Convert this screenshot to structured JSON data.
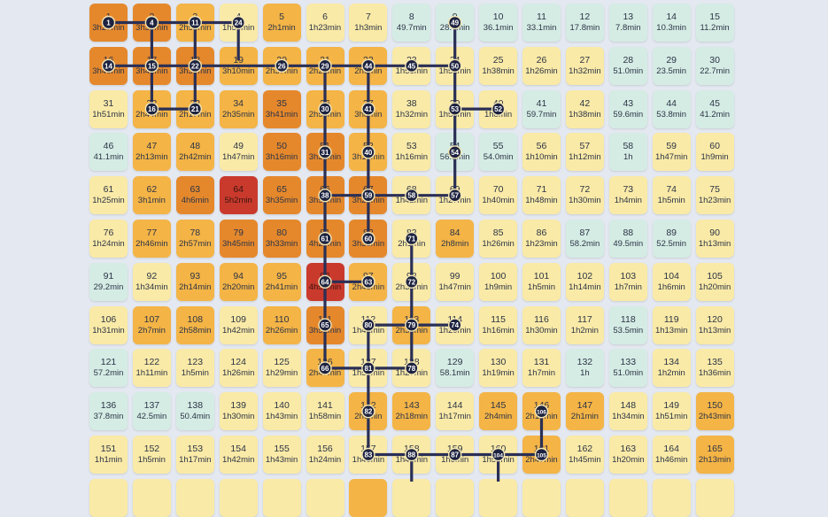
{
  "columns": 15,
  "colors": {
    "t0": "#d5ece4",
    "t1": "#faeaa7",
    "t2": "#f4b446",
    "t3": "#e5882c",
    "t4": "#c93a2d",
    "route": "#2a2f55",
    "marker": "#1d2340"
  },
  "cells": [
    {
      "n": "1",
      "v": "3h27min",
      "t": "t3"
    },
    {
      "n": "2",
      "v": "3h39min",
      "t": "t3"
    },
    {
      "n": "3",
      "v": "2h51min",
      "t": "t2"
    },
    {
      "n": "4",
      "v": "1h56min",
      "t": "t1"
    },
    {
      "n": "5",
      "v": "2h1min",
      "t": "t2"
    },
    {
      "n": "6",
      "v": "1h23min",
      "t": "t1"
    },
    {
      "n": "7",
      "v": "1h3min",
      "t": "t1"
    },
    {
      "n": "8",
      "v": "49.7min",
      "t": "t0"
    },
    {
      "n": "9",
      "v": "28.4min",
      "t": "t0"
    },
    {
      "n": "10",
      "v": "36.1min",
      "t": "t0"
    },
    {
      "n": "11",
      "v": "33.1min",
      "t": "t0"
    },
    {
      "n": "12",
      "v": "17.8min",
      "t": "t0"
    },
    {
      "n": "13",
      "v": "7.8min",
      "t": "t0"
    },
    {
      "n": "14",
      "v": "10.3min",
      "t": "t0"
    },
    {
      "n": "15",
      "v": "11.2min",
      "t": "t0"
    },
    {
      "n": "16",
      "v": "3h46min",
      "t": "t3"
    },
    {
      "n": "17",
      "v": "3h41min",
      "t": "t3"
    },
    {
      "n": "18",
      "v": "3h39min",
      "t": "t3"
    },
    {
      "n": "19",
      "v": "3h10min",
      "t": "t2"
    },
    {
      "n": "20",
      "v": "2h37min",
      "t": "t2"
    },
    {
      "n": "21",
      "v": "2h21min",
      "t": "t2"
    },
    {
      "n": "22",
      "v": "2h6min",
      "t": "t2"
    },
    {
      "n": "23",
      "v": "1h56min",
      "t": "t1"
    },
    {
      "n": "24",
      "v": "1h51min",
      "t": "t1"
    },
    {
      "n": "25",
      "v": "1h38min",
      "t": "t1"
    },
    {
      "n": "26",
      "v": "1h26min",
      "t": "t1"
    },
    {
      "n": "27",
      "v": "1h32min",
      "t": "t1"
    },
    {
      "n": "28",
      "v": "51.0min",
      "t": "t0"
    },
    {
      "n": "29",
      "v": "23.5min",
      "t": "t0"
    },
    {
      "n": "30",
      "v": "22.7min",
      "t": "t0"
    },
    {
      "n": "31",
      "v": "1h51min",
      "t": "t1"
    },
    {
      "n": "32",
      "v": "2h44min",
      "t": "t2"
    },
    {
      "n": "33",
      "v": "2h17min",
      "t": "t2"
    },
    {
      "n": "34",
      "v": "2h35min",
      "t": "t2"
    },
    {
      "n": "35",
      "v": "3h41min",
      "t": "t3"
    },
    {
      "n": "36",
      "v": "2h58min",
      "t": "t2"
    },
    {
      "n": "37",
      "v": "3h8min",
      "t": "t2"
    },
    {
      "n": "38",
      "v": "1h32min",
      "t": "t1"
    },
    {
      "n": "39",
      "v": "1h53min",
      "t": "t1"
    },
    {
      "n": "40",
      "v": "1h8min",
      "t": "t1"
    },
    {
      "n": "41",
      "v": "59.7min",
      "t": "t0"
    },
    {
      "n": "42",
      "v": "1h38min",
      "t": "t1"
    },
    {
      "n": "43",
      "v": "59.6min",
      "t": "t0"
    },
    {
      "n": "44",
      "v": "53.8min",
      "t": "t0"
    },
    {
      "n": "45",
      "v": "41.2min",
      "t": "t0"
    },
    {
      "n": "46",
      "v": "41.1min",
      "t": "t0"
    },
    {
      "n": "47",
      "v": "2h13min",
      "t": "t2"
    },
    {
      "n": "48",
      "v": "2h42min",
      "t": "t2"
    },
    {
      "n": "49",
      "v": "1h47min",
      "t": "t1"
    },
    {
      "n": "50",
      "v": "3h16min",
      "t": "t3"
    },
    {
      "n": "51",
      "v": "3h32min",
      "t": "t3"
    },
    {
      "n": "52",
      "v": "3h19min",
      "t": "t2"
    },
    {
      "n": "53",
      "v": "1h16min",
      "t": "t1"
    },
    {
      "n": "54",
      "v": "56.3min",
      "t": "t0"
    },
    {
      "n": "55",
      "v": "54.0min",
      "t": "t0"
    },
    {
      "n": "56",
      "v": "1h10min",
      "t": "t1"
    },
    {
      "n": "57",
      "v": "1h12min",
      "t": "t1"
    },
    {
      "n": "58",
      "v": "1h",
      "t": "t0"
    },
    {
      "n": "59",
      "v": "1h47min",
      "t": "t1"
    },
    {
      "n": "60",
      "v": "1h9min",
      "t": "t1"
    },
    {
      "n": "61",
      "v": "1h25min",
      "t": "t1"
    },
    {
      "n": "62",
      "v": "3h1min",
      "t": "t2"
    },
    {
      "n": "63",
      "v": "4h6min",
      "t": "t3"
    },
    {
      "n": "64",
      "v": "5h2min",
      "t": "t4"
    },
    {
      "n": "65",
      "v": "3h35min",
      "t": "t3"
    },
    {
      "n": "66",
      "v": "3h58min",
      "t": "t3"
    },
    {
      "n": "67",
      "v": "3h28min",
      "t": "t3"
    },
    {
      "n": "68",
      "v": "1h42min",
      "t": "t1"
    },
    {
      "n": "69",
      "v": "1h27min",
      "t": "t1"
    },
    {
      "n": "70",
      "v": "1h40min",
      "t": "t1"
    },
    {
      "n": "71",
      "v": "1h48min",
      "t": "t1"
    },
    {
      "n": "72",
      "v": "1h30min",
      "t": "t1"
    },
    {
      "n": "73",
      "v": "1h4min",
      "t": "t1"
    },
    {
      "n": "74",
      "v": "1h5min",
      "t": "t1"
    },
    {
      "n": "75",
      "v": "1h23min",
      "t": "t1"
    },
    {
      "n": "76",
      "v": "1h24min",
      "t": "t1"
    },
    {
      "n": "77",
      "v": "2h46min",
      "t": "t2"
    },
    {
      "n": "78",
      "v": "2h57min",
      "t": "t2"
    },
    {
      "n": "79",
      "v": "3h45min",
      "t": "t3"
    },
    {
      "n": "80",
      "v": "3h33min",
      "t": "t3"
    },
    {
      "n": "81",
      "v": "4h20min",
      "t": "t3"
    },
    {
      "n": "82",
      "v": "3h38min",
      "t": "t3"
    },
    {
      "n": "83",
      "v": "2h1min",
      "t": "t1"
    },
    {
      "n": "84",
      "v": "2h8min",
      "t": "t2"
    },
    {
      "n": "85",
      "v": "1h26min",
      "t": "t1"
    },
    {
      "n": "86",
      "v": "1h23min",
      "t": "t1"
    },
    {
      "n": "87",
      "v": "58.2min",
      "t": "t0"
    },
    {
      "n": "88",
      "v": "49.5min",
      "t": "t0"
    },
    {
      "n": "89",
      "v": "52.5min",
      "t": "t0"
    },
    {
      "n": "90",
      "v": "1h13min",
      "t": "t1"
    },
    {
      "n": "91",
      "v": "29.2min",
      "t": "t0"
    },
    {
      "n": "92",
      "v": "1h34min",
      "t": "t1"
    },
    {
      "n": "93",
      "v": "2h14min",
      "t": "t2"
    },
    {
      "n": "94",
      "v": "2h20min",
      "t": "t2"
    },
    {
      "n": "95",
      "v": "2h41min",
      "t": "t2"
    },
    {
      "n": "96",
      "v": "4h51min",
      "t": "t4"
    },
    {
      "n": "97",
      "v": "2h45min",
      "t": "t2"
    },
    {
      "n": "98",
      "v": "2h32min",
      "t": "t1"
    },
    {
      "n": "99",
      "v": "1h47min",
      "t": "t1"
    },
    {
      "n": "100",
      "v": "1h9min",
      "t": "t1"
    },
    {
      "n": "101",
      "v": "1h5min",
      "t": "t1"
    },
    {
      "n": "102",
      "v": "1h14min",
      "t": "t1"
    },
    {
      "n": "103",
      "v": "1h7min",
      "t": "t1"
    },
    {
      "n": "104",
      "v": "1h6min",
      "t": "t1"
    },
    {
      "n": "105",
      "v": "1h20min",
      "t": "t1"
    },
    {
      "n": "106",
      "v": "1h31min",
      "t": "t1"
    },
    {
      "n": "107",
      "v": "2h7min",
      "t": "t2"
    },
    {
      "n": "108",
      "v": "2h58min",
      "t": "t2"
    },
    {
      "n": "109",
      "v": "1h42min",
      "t": "t1"
    },
    {
      "n": "110",
      "v": "2h26min",
      "t": "t2"
    },
    {
      "n": "111",
      "v": "3h52min",
      "t": "t3"
    },
    {
      "n": "112",
      "v": "1h41min",
      "t": "t1"
    },
    {
      "n": "113",
      "v": "2h36min",
      "t": "t2"
    },
    {
      "n": "114",
      "v": "1h20min",
      "t": "t1"
    },
    {
      "n": "115",
      "v": "1h16min",
      "t": "t1"
    },
    {
      "n": "116",
      "v": "1h30min",
      "t": "t1"
    },
    {
      "n": "117",
      "v": "1h2min",
      "t": "t1"
    },
    {
      "n": "118",
      "v": "53.5min",
      "t": "t0"
    },
    {
      "n": "119",
      "v": "1h13min",
      "t": "t1"
    },
    {
      "n": "120",
      "v": "1h13min",
      "t": "t1"
    },
    {
      "n": "121",
      "v": "57.2min",
      "t": "t0"
    },
    {
      "n": "122",
      "v": "1h11min",
      "t": "t1"
    },
    {
      "n": "123",
      "v": "1h5min",
      "t": "t1"
    },
    {
      "n": "124",
      "v": "1h26min",
      "t": "t1"
    },
    {
      "n": "125",
      "v": "1h29min",
      "t": "t1"
    },
    {
      "n": "126",
      "v": "2h47min",
      "t": "t2"
    },
    {
      "n": "127",
      "v": "1h53min",
      "t": "t1"
    },
    {
      "n": "128",
      "v": "1h27min",
      "t": "t1"
    },
    {
      "n": "129",
      "v": "58.1min",
      "t": "t0"
    },
    {
      "n": "130",
      "v": "1h19min",
      "t": "t1"
    },
    {
      "n": "131",
      "v": "1h7min",
      "t": "t1"
    },
    {
      "n": "132",
      "v": "1h",
      "t": "t0"
    },
    {
      "n": "133",
      "v": "51.0min",
      "t": "t0"
    },
    {
      "n": "134",
      "v": "1h2min",
      "t": "t1"
    },
    {
      "n": "135",
      "v": "1h36min",
      "t": "t1"
    },
    {
      "n": "136",
      "v": "37.8min",
      "t": "t0"
    },
    {
      "n": "137",
      "v": "42.5min",
      "t": "t0"
    },
    {
      "n": "138",
      "v": "50.4min",
      "t": "t0"
    },
    {
      "n": "139",
      "v": "1h30min",
      "t": "t1"
    },
    {
      "n": "140",
      "v": "1h43min",
      "t": "t1"
    },
    {
      "n": "141",
      "v": "1h58min",
      "t": "t1"
    },
    {
      "n": "142",
      "v": "2h6min",
      "t": "t2"
    },
    {
      "n": "143",
      "v": "2h18min",
      "t": "t2"
    },
    {
      "n": "144",
      "v": "1h17min",
      "t": "t1"
    },
    {
      "n": "145",
      "v": "2h4min",
      "t": "t2"
    },
    {
      "n": "146",
      "v": "2h13min",
      "t": "t2"
    },
    {
      "n": "147",
      "v": "2h1min",
      "t": "t2"
    },
    {
      "n": "148",
      "v": "1h34min",
      "t": "t1"
    },
    {
      "n": "149",
      "v": "1h51min",
      "t": "t1"
    },
    {
      "n": "150",
      "v": "2h43min",
      "t": "t2"
    },
    {
      "n": "151",
      "v": "1h1min",
      "t": "t1"
    },
    {
      "n": "152",
      "v": "1h5min",
      "t": "t1"
    },
    {
      "n": "153",
      "v": "1h17min",
      "t": "t1"
    },
    {
      "n": "154",
      "v": "1h42min",
      "t": "t1"
    },
    {
      "n": "155",
      "v": "1h43min",
      "t": "t1"
    },
    {
      "n": "156",
      "v": "1h24min",
      "t": "t1"
    },
    {
      "n": "157",
      "v": "1h40min",
      "t": "t1"
    },
    {
      "n": "158",
      "v": "1h46min",
      "t": "t1"
    },
    {
      "n": "159",
      "v": "1h6min",
      "t": "t1"
    },
    {
      "n": "160",
      "v": "1h50min",
      "t": "t1"
    },
    {
      "n": "161",
      "v": "2h47min",
      "t": "t2"
    },
    {
      "n": "162",
      "v": "1h45min",
      "t": "t1"
    },
    {
      "n": "163",
      "v": "1h20min",
      "t": "t1"
    },
    {
      "n": "164",
      "v": "1h46min",
      "t": "t1"
    },
    {
      "n": "165",
      "v": "2h13min",
      "t": "t2"
    }
  ],
  "partial_row_tiers": [
    "t1",
    "t1",
    "t1",
    "t1",
    "t1",
    "t1",
    "t2",
    "t1",
    "t1",
    "t1",
    "t1",
    "t1",
    "t1",
    "t1",
    "t1"
  ],
  "markers": [
    {
      "label": "1",
      "c": 0,
      "r": 0
    },
    {
      "label": "4",
      "c": 1,
      "r": 0
    },
    {
      "label": "11",
      "c": 2,
      "r": 0
    },
    {
      "label": "24",
      "c": 3,
      "r": 0
    },
    {
      "label": "14",
      "c": 0,
      "r": 1
    },
    {
      "label": "15",
      "c": 1,
      "r": 1
    },
    {
      "label": "22",
      "c": 2,
      "r": 1
    },
    {
      "label": "26",
      "c": 4,
      "r": 1
    },
    {
      "label": "29",
      "c": 5,
      "r": 1
    },
    {
      "label": "44",
      "c": 6,
      "r": 1
    },
    {
      "label": "45",
      "c": 7,
      "r": 1
    },
    {
      "label": "50",
      "c": 8,
      "r": 1
    },
    {
      "label": "49",
      "c": 8,
      "r": 0
    },
    {
      "label": "16",
      "c": 1,
      "r": 2
    },
    {
      "label": "21",
      "c": 2,
      "r": 2
    },
    {
      "label": "30",
      "c": 5,
      "r": 2
    },
    {
      "label": "41",
      "c": 6,
      "r": 2
    },
    {
      "label": "53",
      "c": 8,
      "r": 2
    },
    {
      "label": "52",
      "c": 9,
      "r": 2
    },
    {
      "label": "31",
      "c": 5,
      "r": 3
    },
    {
      "label": "40",
      "c": 6,
      "r": 3
    },
    {
      "label": "54",
      "c": 8,
      "r": 3
    },
    {
      "label": "38",
      "c": 5,
      "r": 4
    },
    {
      "label": "59",
      "c": 6,
      "r": 4
    },
    {
      "label": "58",
      "c": 7,
      "r": 4
    },
    {
      "label": "57",
      "c": 8,
      "r": 4
    },
    {
      "label": "61",
      "c": 5,
      "r": 5
    },
    {
      "label": "60",
      "c": 6,
      "r": 5
    },
    {
      "label": "71",
      "c": 7,
      "r": 5
    },
    {
      "label": "64",
      "c": 5,
      "r": 6
    },
    {
      "label": "63",
      "c": 6,
      "r": 6
    },
    {
      "label": "72",
      "c": 7,
      "r": 6
    },
    {
      "label": "65",
      "c": 5,
      "r": 7
    },
    {
      "label": "80",
      "c": 6,
      "r": 7
    },
    {
      "label": "79",
      "c": 7,
      "r": 7
    },
    {
      "label": "74",
      "c": 8,
      "r": 7
    },
    {
      "label": "66",
      "c": 5,
      "r": 8
    },
    {
      "label": "81",
      "c": 6,
      "r": 8
    },
    {
      "label": "78",
      "c": 7,
      "r": 8
    },
    {
      "label": "82",
      "c": 6,
      "r": 9
    },
    {
      "label": "106",
      "c": 10,
      "r": 9
    },
    {
      "label": "83",
      "c": 6,
      "r": 10
    },
    {
      "label": "88",
      "c": 7,
      "r": 10
    },
    {
      "label": "87",
      "c": 8,
      "r": 10
    },
    {
      "label": "104",
      "c": 9,
      "r": 10
    },
    {
      "label": "105",
      "c": 10,
      "r": 10
    }
  ],
  "route_segments": [
    [
      [
        0,
        0
      ],
      [
        1,
        0
      ]
    ],
    [
      [
        1,
        0
      ],
      [
        2,
        0
      ]
    ],
    [
      [
        2,
        0
      ],
      [
        3,
        0
      ]
    ],
    [
      [
        3,
        0
      ],
      [
        3,
        0.85
      ]
    ],
    [
      [
        1,
        0
      ],
      [
        1,
        1
      ]
    ],
    [
      [
        2,
        0
      ],
      [
        2,
        1
      ]
    ],
    [
      [
        0,
        1
      ],
      [
        1,
        1
      ]
    ],
    [
      [
        1,
        1
      ],
      [
        2,
        1
      ]
    ],
    [
      [
        2,
        1
      ],
      [
        3,
        1
      ]
    ],
    [
      [
        3,
        1
      ],
      [
        4,
        1
      ]
    ],
    [
      [
        4,
        1
      ],
      [
        5,
        1
      ]
    ],
    [
      [
        5,
        1
      ],
      [
        6,
        1
      ]
    ],
    [
      [
        6,
        1
      ],
      [
        7,
        1
      ]
    ],
    [
      [
        7,
        1
      ],
      [
        8,
        1
      ]
    ],
    [
      [
        8,
        0
      ],
      [
        8,
        1
      ]
    ],
    [
      [
        1,
        1
      ],
      [
        1,
        2
      ]
    ],
    [
      [
        2,
        1
      ],
      [
        2,
        2
      ]
    ],
    [
      [
        1,
        2
      ],
      [
        2,
        2
      ]
    ],
    [
      [
        5,
        1
      ],
      [
        5,
        2
      ]
    ],
    [
      [
        5,
        2
      ],
      [
        5,
        3
      ]
    ],
    [
      [
        5,
        3
      ],
      [
        5,
        4
      ]
    ],
    [
      [
        5,
        4
      ],
      [
        5,
        5
      ]
    ],
    [
      [
        5,
        5
      ],
      [
        5,
        6
      ]
    ],
    [
      [
        5,
        6
      ],
      [
        5,
        7
      ]
    ],
    [
      [
        5,
        7
      ],
      [
        5,
        8
      ]
    ],
    [
      [
        6,
        1
      ],
      [
        6,
        2
      ]
    ],
    [
      [
        6,
        2
      ],
      [
        6,
        3
      ]
    ],
    [
      [
        6,
        3
      ],
      [
        6,
        4
      ]
    ],
    [
      [
        6,
        4
      ],
      [
        6,
        5
      ]
    ],
    [
      [
        8,
        1
      ],
      [
        8,
        2
      ]
    ],
    [
      [
        8,
        2
      ],
      [
        9,
        2
      ]
    ],
    [
      [
        8,
        2
      ],
      [
        8,
        3
      ]
    ],
    [
      [
        8,
        3
      ],
      [
        8,
        4
      ]
    ],
    [
      [
        5,
        4
      ],
      [
        6,
        4
      ]
    ],
    [
      [
        6,
        4
      ],
      [
        7,
        4
      ]
    ],
    [
      [
        7,
        4
      ],
      [
        8,
        4
      ]
    ],
    [
      [
        5,
        6
      ],
      [
        6,
        6
      ]
    ],
    [
      [
        7,
        5
      ],
      [
        7,
        6
      ]
    ],
    [
      [
        7,
        6
      ],
      [
        7,
        7
      ]
    ],
    [
      [
        7,
        7
      ],
      [
        7,
        8
      ]
    ],
    [
      [
        7,
        7
      ],
      [
        8,
        7
      ]
    ],
    [
      [
        6,
        7
      ],
      [
        7,
        7
      ]
    ],
    [
      [
        5,
        8
      ],
      [
        6,
        8
      ]
    ],
    [
      [
        6,
        8
      ],
      [
        7,
        8
      ]
    ],
    [
      [
        6,
        7
      ],
      [
        6,
        8
      ]
    ],
    [
      [
        6,
        8
      ],
      [
        6,
        9
      ]
    ],
    [
      [
        6,
        9
      ],
      [
        6,
        10
      ]
    ],
    [
      [
        6,
        10
      ],
      [
        7,
        10
      ]
    ],
    [
      [
        7,
        10
      ],
      [
        8,
        10
      ]
    ],
    [
      [
        8,
        10
      ],
      [
        9,
        10
      ]
    ],
    [
      [
        9,
        10
      ],
      [
        10,
        10
      ]
    ],
    [
      [
        10,
        9
      ],
      [
        10,
        10
      ]
    ],
    [
      [
        7,
        10
      ],
      [
        7,
        11
      ]
    ],
    [
      [
        9,
        10
      ],
      [
        9,
        11
      ]
    ]
  ]
}
